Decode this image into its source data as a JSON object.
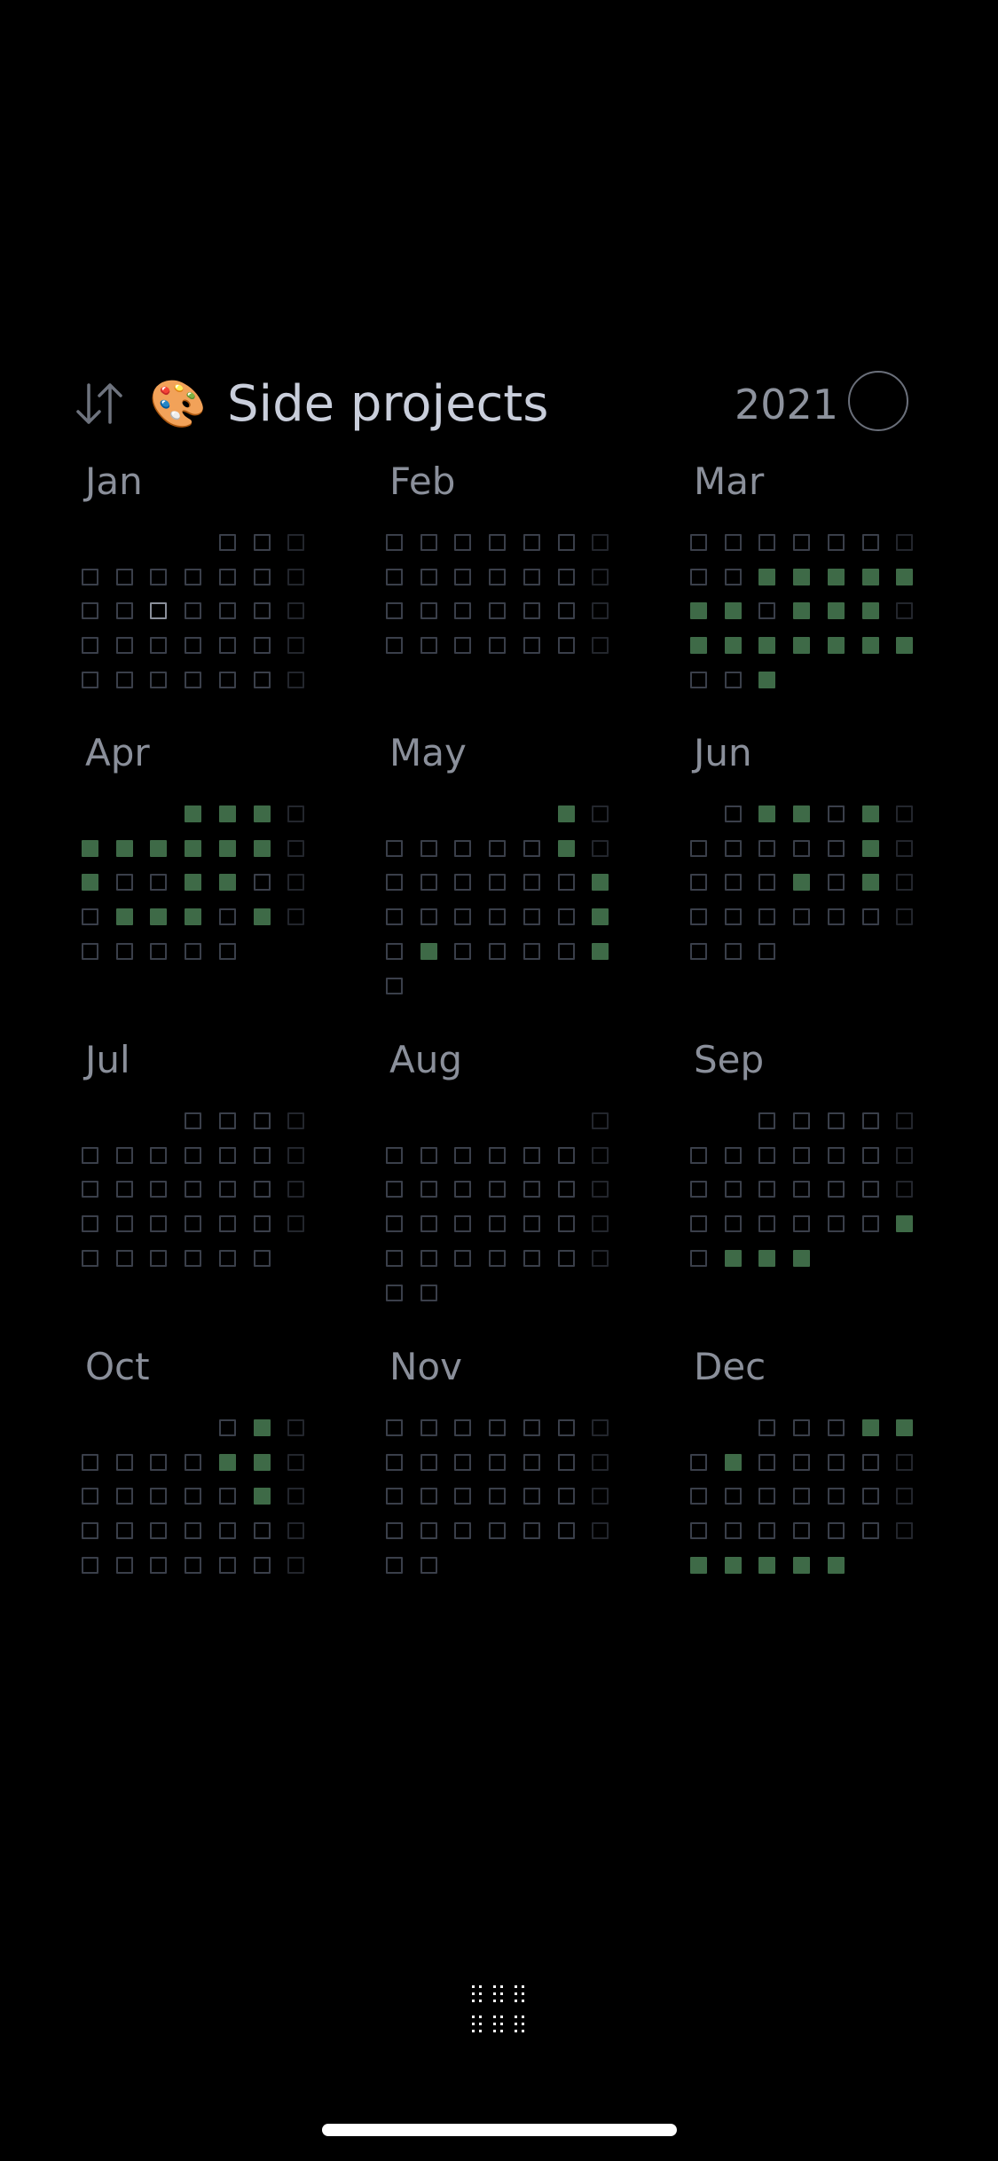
{
  "header": {
    "sort_icon": "sort-arrows-icon",
    "emoji": "🎨",
    "title": "Side projects",
    "year": "2021",
    "year_button_icon": "circle-icon"
  },
  "colors": {
    "on": "#3e6a47",
    "off": "#3a3f4a",
    "dim": "#23262d",
    "today": "#8a8f9a"
  },
  "months": [
    {
      "name": "Jan",
      "days": 31,
      "start": 5,
      "on": [],
      "today": 13
    },
    {
      "name": "Feb",
      "days": 28,
      "start": 1,
      "on": []
    },
    {
      "name": "Mar",
      "days": 31,
      "start": 1,
      "on": [
        10,
        11,
        12,
        13,
        14,
        15,
        16,
        18,
        19,
        20,
        22,
        23,
        24,
        25,
        26,
        27,
        28,
        31
      ]
    },
    {
      "name": "Apr",
      "days": 30,
      "start": 4,
      "on": [
        1,
        2,
        3,
        5,
        6,
        7,
        8,
        9,
        10,
        12,
        15,
        16,
        20,
        21,
        22,
        24
      ]
    },
    {
      "name": "May",
      "days": 31,
      "start": 6,
      "on": [
        1,
        8,
        16,
        23,
        25,
        30
      ]
    },
    {
      "name": "Jun",
      "days": 30,
      "start": 2,
      "on": [
        2,
        3,
        5,
        12,
        17,
        19
      ]
    },
    {
      "name": "Jul",
      "days": 31,
      "start": 4,
      "on": []
    },
    {
      "name": "Aug",
      "days": 31,
      "start": 7,
      "on": []
    },
    {
      "name": "Sep",
      "days": 30,
      "start": 3,
      "on": [
        26,
        28,
        29,
        30
      ]
    },
    {
      "name": "Oct",
      "days": 31,
      "start": 5,
      "on": [
        2,
        8,
        9,
        16
      ]
    },
    {
      "name": "Nov",
      "days": 30,
      "start": 1,
      "on": []
    },
    {
      "name": "Dec",
      "days": 31,
      "start": 3,
      "on": [
        4,
        5,
        7,
        27,
        28,
        29,
        30,
        31
      ]
    }
  ],
  "bottom": {
    "icon": "grid-dots-icon"
  }
}
